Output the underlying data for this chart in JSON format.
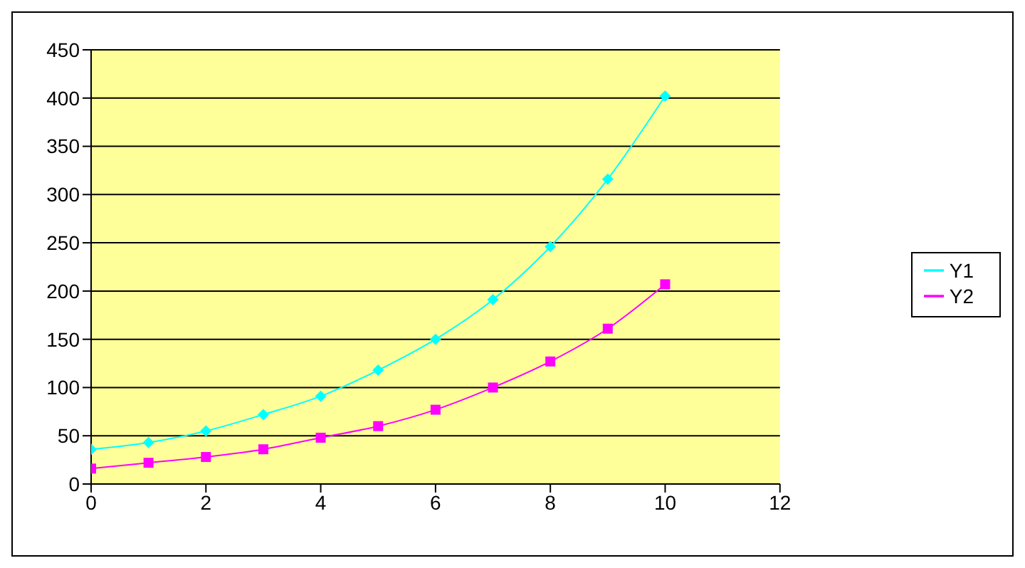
{
  "chart_data": {
    "type": "line",
    "x": [
      0,
      1,
      2,
      3,
      4,
      5,
      6,
      7,
      8,
      9,
      10
    ],
    "series": [
      {
        "name": "Y1",
        "color": "#00ffff",
        "marker": "diamond",
        "values": [
          36,
          43,
          55,
          72,
          91,
          118,
          150,
          191,
          246,
          316,
          402
        ]
      },
      {
        "name": "Y2",
        "color": "#ff00ff",
        "marker": "square",
        "values": [
          16,
          22,
          28,
          36,
          48,
          60,
          77,
          100,
          127,
          161,
          207
        ]
      }
    ],
    "xlim": [
      0,
      12
    ],
    "xticks": [
      0,
      2,
      4,
      6,
      8,
      10,
      12
    ],
    "ylim": [
      0,
      450
    ],
    "yticks": [
      0,
      50,
      100,
      150,
      200,
      250,
      300,
      350,
      400,
      450
    ],
    "grid": "y",
    "legend": "right",
    "line_style": "solid"
  }
}
